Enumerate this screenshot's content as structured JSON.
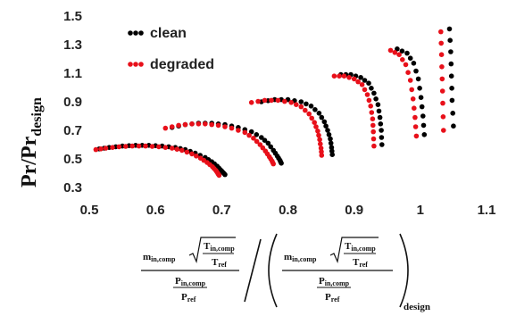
{
  "chart_data": {
    "type": "scatter",
    "ylabel": "Pr/Pr",
    "ylabel_sub": "design",
    "xlim": [
      0.5,
      1.1
    ],
    "ylim": [
      0.3,
      1.5
    ],
    "x_ticks": [
      "0.5",
      "0.6",
      "0.7",
      "0.8",
      "0.9",
      "1",
      "1.1"
    ],
    "y_ticks": [
      "0.3",
      "0.5",
      "0.7",
      "0.9",
      "1.1",
      "1.3",
      "1.5"
    ],
    "legend_position": "top-left",
    "xlabel_formula": {
      "m": "m",
      "m_sub": "in,comp",
      "t_num": "T",
      "t_num_sub": "in,comp",
      "t_den": "T",
      "t_den_sub": "ref",
      "p_num": "P",
      "p_num_sub": "in,comp",
      "p_den": "P",
      "p_den_sub": "ref",
      "outer_sub": "design"
    },
    "series": [
      {
        "name": "clean",
        "color": "#000000",
        "lines": [
          {
            "x": [
              0.515,
              0.53,
              0.55,
              0.57,
              0.59,
              0.61,
              0.63,
              0.645,
              0.66,
              0.675,
              0.685,
              0.693,
              0.698,
              0.702,
              0.705
            ],
            "y": [
              0.57,
              0.58,
              0.59,
              0.595,
              0.595,
              0.59,
              0.58,
              0.565,
              0.54,
              0.51,
              0.48,
              0.45,
              0.425,
              0.405,
              0.39
            ]
          },
          {
            "x": [
              0.625,
              0.645,
              0.665,
              0.685,
              0.705,
              0.725,
              0.745,
              0.76,
              0.77,
              0.778,
              0.784,
              0.788,
              0.79
            ],
            "y": [
              0.72,
              0.74,
              0.75,
              0.75,
              0.74,
              0.72,
              0.69,
              0.65,
              0.61,
              0.56,
              0.52,
              0.49,
              0.47
            ]
          },
          {
            "x": [
              0.76,
              0.78,
              0.8,
              0.82,
              0.835,
              0.847,
              0.855,
              0.86,
              0.864,
              0.866,
              0.867
            ],
            "y": [
              0.9,
              0.915,
              0.915,
              0.9,
              0.87,
              0.82,
              0.76,
              0.7,
              0.64,
              0.58,
              0.53
            ]
          },
          {
            "x": [
              0.88,
              0.895,
              0.91,
              0.922,
              0.93,
              0.936,
              0.939,
              0.941,
              0.942
            ],
            "y": [
              1.09,
              1.09,
              1.07,
              1.03,
              0.96,
              0.88,
              0.79,
              0.7,
              0.6
            ]
          },
          {
            "x": [
              0.965,
              0.98,
              0.99,
              0.997,
              1.001,
              1.004,
              1.006
            ],
            "y": [
              1.27,
              1.24,
              1.17,
              1.06,
              0.93,
              0.8,
              0.67
            ]
          },
          {
            "x": [
              1.044,
              1.046,
              1.047,
              1.048,
              1.05
            ],
            "y": [
              1.41,
              1.25,
              1.08,
              0.91,
              0.73
            ]
          }
        ]
      },
      {
        "name": "degraded",
        "color": "#e8101a",
        "lines": [
          {
            "x": [
              0.51,
              0.525,
              0.545,
              0.565,
              0.585,
              0.605,
              0.625,
              0.64,
              0.655,
              0.668,
              0.678,
              0.686,
              0.691,
              0.694,
              0.696
            ],
            "y": [
              0.565,
              0.575,
              0.585,
              0.59,
              0.59,
              0.585,
              0.575,
              0.56,
              0.535,
              0.505,
              0.475,
              0.445,
              0.42,
              0.4,
              0.385
            ]
          },
          {
            "x": [
              0.615,
              0.635,
              0.655,
              0.675,
              0.695,
              0.715,
              0.735,
              0.748,
              0.758,
              0.766,
              0.772,
              0.776,
              0.778
            ],
            "y": [
              0.715,
              0.735,
              0.745,
              0.745,
              0.735,
              0.715,
              0.685,
              0.645,
              0.6,
              0.555,
              0.515,
              0.485,
              0.465
            ]
          },
          {
            "x": [
              0.745,
              0.765,
              0.785,
              0.805,
              0.82,
              0.832,
              0.84,
              0.845,
              0.848,
              0.85,
              0.851
            ],
            "y": [
              0.895,
              0.91,
              0.91,
              0.895,
              0.865,
              0.815,
              0.755,
              0.695,
              0.635,
              0.575,
              0.525
            ]
          },
          {
            "x": [
              0.87,
              0.885,
              0.9,
              0.912,
              0.92,
              0.925,
              0.928,
              0.929,
              0.93
            ],
            "y": [
              1.08,
              1.08,
              1.06,
              1.02,
              0.95,
              0.87,
              0.78,
              0.69,
              0.59
            ]
          },
          {
            "x": [
              0.955,
              0.968,
              0.978,
              0.985,
              0.989,
              0.992,
              0.994
            ],
            "y": [
              1.26,
              1.23,
              1.16,
              1.05,
              0.92,
              0.79,
              0.66
            ]
          },
          {
            "x": [
              1.031,
              1.032,
              1.033,
              1.034,
              1.035
            ],
            "y": [
              1.39,
              1.23,
              1.06,
              0.89,
              0.7
            ]
          }
        ]
      }
    ]
  }
}
